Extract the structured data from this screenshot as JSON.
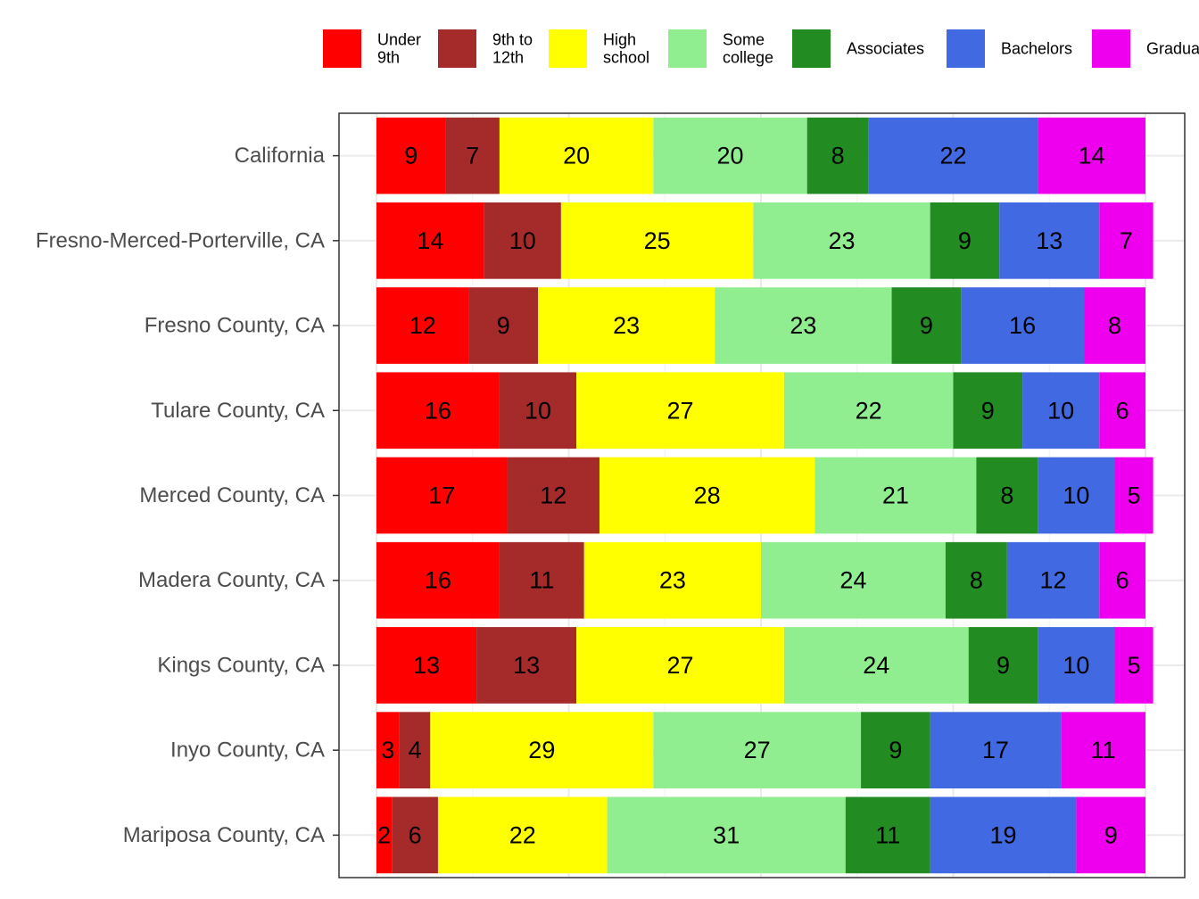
{
  "chart_data": {
    "type": "bar",
    "orientation": "horizontal",
    "stacked": true,
    "categories": [
      "California",
      "Fresno-Merced-Porterville, CA",
      "Fresno County, CA",
      "Tulare County, CA",
      "Merced County, CA",
      "Madera County, CA",
      "Kings County, CA",
      "Inyo County, CA",
      "Mariposa County, CA"
    ],
    "series": [
      {
        "name": "Under 9th",
        "legend_lines": [
          "Under",
          "9th"
        ],
        "color": "#FF0000",
        "values": [
          9,
          14,
          12,
          16,
          17,
          16,
          13,
          3,
          2
        ]
      },
      {
        "name": "9th to 12th",
        "legend_lines": [
          "9th to",
          "12th"
        ],
        "color": "#A52A2A",
        "values": [
          7,
          10,
          9,
          10,
          12,
          11,
          13,
          4,
          6
        ]
      },
      {
        "name": "High school",
        "legend_lines": [
          "High",
          "school"
        ],
        "color": "#FFFF00",
        "values": [
          20,
          25,
          23,
          27,
          28,
          23,
          27,
          29,
          22
        ]
      },
      {
        "name": "Some college",
        "legend_lines": [
          "Some",
          "college"
        ],
        "color": "#90EE90",
        "values": [
          20,
          23,
          23,
          22,
          21,
          24,
          24,
          27,
          31
        ]
      },
      {
        "name": "Associates",
        "legend_lines": [
          "Associates"
        ],
        "color": "#228B22",
        "values": [
          8,
          9,
          9,
          9,
          8,
          8,
          9,
          9,
          11
        ]
      },
      {
        "name": "Bachelors",
        "legend_lines": [
          "Bachelors"
        ],
        "color": "#4169E1",
        "values": [
          22,
          13,
          16,
          10,
          10,
          12,
          10,
          17,
          19
        ]
      },
      {
        "name": "Graduate",
        "legend_lines": [
          "Graduate"
        ],
        "color": "#EE00EE",
        "values": [
          14,
          7,
          8,
          6,
          5,
          6,
          5,
          11,
          9
        ]
      }
    ],
    "xlim": [
      0,
      100
    ],
    "grid": true,
    "legend_position": "top",
    "title": "",
    "xlabel": "",
    "ylabel": ""
  }
}
